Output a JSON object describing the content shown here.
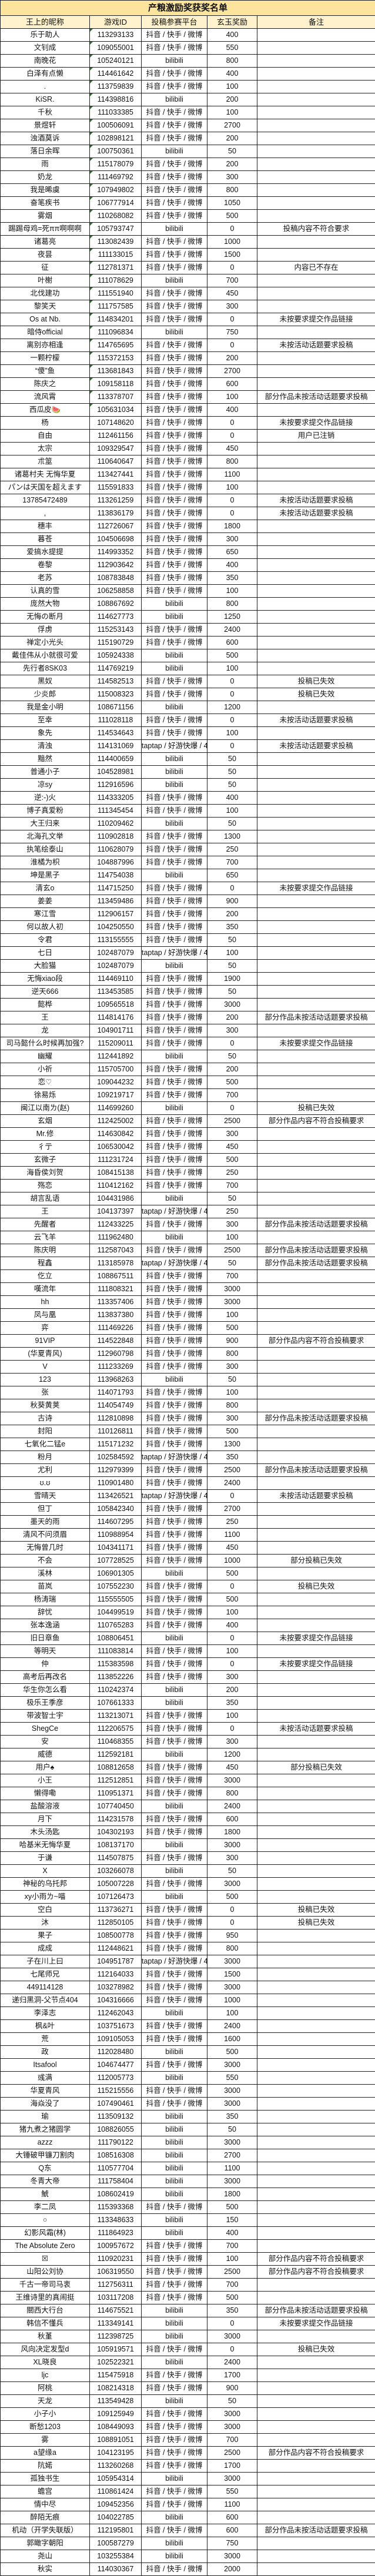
{
  "title": "产粮激励奖获奖名单",
  "colors": {
    "title_bg": "#fde49c",
    "header_bg": "#fff2cc",
    "text_number_marker": "#1f7a1f"
  },
  "headers": [
    "王上的昵称",
    "游戏ID",
    "投稿参赛平台",
    "玄玉奖励",
    "备注"
  ],
  "rows": [
    [
      "乐于助人",
      "113293133",
      "抖音 / 快手 / 微博",
      "400",
      ""
    ],
    [
      "文钊成",
      "109055001",
      "抖音 / 快手 / 微博",
      "550",
      ""
    ],
    [
      "南晚花",
      "105240121",
      "bilibili",
      "800",
      ""
    ],
    [
      "白泽有点懒",
      "114461642",
      "抖音 / 快手 / 微博",
      "400",
      ""
    ],
    [
      ".",
      "113759839",
      "抖音 / 快手 / 微博",
      "100",
      ""
    ],
    [
      "KiSR.",
      "114398816",
      "bilibili",
      "200",
      ""
    ],
    [
      "千秋",
      "111033385",
      "抖音 / 快手 / 微博",
      "100",
      ""
    ],
    [
      "景煜轩",
      "100506091",
      "抖音 / 快手 / 微博",
      "2700",
      ""
    ],
    [
      "浊酒莫诉",
      "102898121",
      "抖音 / 快手 / 微博",
      "200",
      ""
    ],
    [
      "落日余晖",
      "100750361",
      "bilibili",
      "50",
      ""
    ],
    [
      "雨",
      "115178079",
      "抖音 / 快手 / 微博",
      "200",
      ""
    ],
    [
      "奶龙",
      "111469792",
      "抖音 / 快手 / 微博",
      "300",
      ""
    ],
    [
      "我是晞虞",
      "107949802",
      "抖音 / 快手 / 微博",
      "800",
      ""
    ],
    [
      "奋笔疾书",
      "106777914",
      "抖音 / 快手 / 微博",
      "1050",
      ""
    ],
    [
      "雾烟",
      "110268082",
      "抖音 / 快手 / 微博",
      "500",
      ""
    ],
    [
      "踢踢母鸡=死ππ啊啊啊",
      "105793747",
      "bilibili",
      "0",
      "投稿内容不符合要求"
    ],
    [
      "诸葛亮",
      "113082439",
      "抖音 / 快手 / 微博",
      "1000",
      ""
    ],
    [
      "夜昙",
      "111133015",
      "抖音 / 快手 / 微博",
      "1500",
      ""
    ],
    [
      "征",
      "112781371",
      "抖音 / 快手 / 微博",
      "0",
      "内容已不存在"
    ],
    [
      "叶榭",
      "111078629",
      "bilibili",
      "700",
      ""
    ],
    [
      "北伐建功",
      "111551940",
      "抖音 / 快手 / 微博",
      "450",
      ""
    ],
    [
      "黎笑天",
      "111757585",
      "抖音 / 快手 / 微博",
      "300",
      ""
    ],
    [
      "Os at Nb.",
      "114834201",
      "抖音 / 快手 / 微博",
      "0",
      "未按要求提交作品链接"
    ],
    [
      "暗侍official",
      "111096834",
      "bilibili",
      "750",
      ""
    ],
    [
      "离别亦相逢",
      "114765695",
      "抖音 / 快手 / 微博",
      "0",
      "未按活动话题要求投稿"
    ],
    [
      "一颗柠檬",
      "115372153",
      "抖音 / 快手 / 微博",
      "200",
      ""
    ],
    [
      "“傻”鱼",
      "113681843",
      "抖音 / 快手 / 微博",
      "2700",
      ""
    ],
    [
      "陈庆之",
      "109158118",
      "抖音 / 快手 / 微博",
      "600",
      ""
    ],
    [
      "流风霄",
      "113378707",
      "抖音 / 快手 / 微博",
      "100",
      "部分作品未按活动话题要求投稿"
    ],
    [
      "西瓜皮🍉",
      "105631034",
      "抖音 / 快手 / 微博",
      "400",
      ""
    ],
    [
      "杨",
      "107148620",
      "抖音 / 快手 / 微博",
      "0",
      "未按要求提交作品链接"
    ],
    [
      "自由",
      "112461156",
      "抖音 / 快手 / 微博",
      "0",
      "用户已注销"
    ],
    [
      "太宗",
      "109329547",
      "抖音 / 快手 / 微博",
      "450",
      ""
    ],
    [
      "朮筮",
      "110640647",
      "抖音 / 快手 / 微博",
      "800",
      ""
    ],
    [
      "诸葛村夫 无悔华夏",
      "113427441",
      "抖音 / 快手 / 微博",
      "1100",
      ""
    ],
    [
      "パンは天国を超えます",
      "115591833",
      "抖音 / 快手 / 微博",
      "100",
      ""
    ],
    [
      "13785472489",
      "113261259",
      "抖音 / 快手 / 微博",
      "0",
      "未按活动话题要求投稿"
    ],
    [
      ",",
      "113836179",
      "抖音 / 快手 / 微博",
      "0",
      "未按活动话题要求投稿"
    ],
    [
      "穗丰",
      "112726067",
      "抖音 / 快手 / 微博",
      "1800",
      ""
    ],
    [
      "暮苍",
      "104506698",
      "抖音 / 快手 / 微博",
      "300",
      ""
    ],
    [
      "爱搞水提提",
      "114993352",
      "抖音 / 快手 / 微博",
      "650",
      ""
    ],
    [
      "卷黎",
      "112903642",
      "抖音 / 快手 / 微博",
      "400",
      ""
    ],
    [
      "老苏",
      "108783848",
      "抖音 / 快手 / 微博",
      "350",
      ""
    ],
    [
      "认真的雪",
      "106258858",
      "抖音 / 快手 / 微博",
      "100",
      ""
    ],
    [
      "庞然大物",
      "108867692",
      "bilibili",
      "800",
      ""
    ],
    [
      "无悔の断月",
      "114627773",
      "bilibili",
      "1250",
      ""
    ],
    [
      "俘虏",
      "115253143",
      "抖音 / 快手 / 微博",
      "2400",
      ""
    ],
    [
      "禅定小光头",
      "115190729",
      "抖音 / 快手 / 微博",
      "600",
      ""
    ],
    [
      "戴佳伟从小就很可爱",
      "105924338",
      "bilibili",
      "500",
      ""
    ],
    [
      "先行者8SK03",
      "114769219",
      "bilibili",
      "100",
      ""
    ],
    [
      "黑奴",
      "114582513",
      "抖音 / 快手 / 微博",
      "0",
      "投稿已失效"
    ],
    [
      "少炎郎",
      "115008323",
      "抖音 / 快手 / 微博",
      "0",
      "投稿已失效"
    ],
    [
      "我是金小明",
      "108671156",
      "bilibili",
      "1200",
      ""
    ],
    [
      "至幸",
      "111028118",
      "抖音 / 快手 / 微博",
      "0",
      "未按活动话题要求投稿"
    ],
    [
      "象先",
      "114534643",
      "抖音 / 快手 / 微博",
      "100",
      ""
    ],
    [
      "清浊",
      "114131069",
      "taptap / 好游快爆 / 4399",
      "0",
      "未按活动话题要求投稿"
    ],
    [
      "黯然",
      "114400659",
      "bilibili",
      "50",
      ""
    ],
    [
      "普通小子",
      "104528981",
      "bilibili",
      "50",
      ""
    ],
    [
      "凉sy",
      "112916596",
      "bilibili",
      "50",
      ""
    ],
    [
      "逆:-)火",
      "114333205",
      "抖音 / 快手 / 微博",
      "400",
      ""
    ],
    [
      "博子真爱粉",
      "111345454",
      "抖音 / 快手 / 微博",
      "100",
      ""
    ],
    [
      "大王归来",
      "110209462",
      "bilibili",
      "50",
      ""
    ],
    [
      "北海孔文举",
      "110902818",
      "抖音 / 快手 / 微博",
      "1300",
      ""
    ],
    [
      "执笔绘泰山",
      "110628079",
      "抖音 / 快手 / 微博",
      "250",
      ""
    ],
    [
      "淮橘为枳",
      "104887996",
      "抖音 / 快手 / 微博",
      "700",
      ""
    ],
    [
      "坤是黑子",
      "114754038",
      "bilibili",
      "650",
      ""
    ],
    [
      "清玄o",
      "114715250",
      "抖音 / 快手 / 微博",
      "0",
      "未按要求提交作品链接"
    ],
    [
      "姜姜",
      "113459486",
      "抖音 / 快手 / 微博",
      "900",
      ""
    ],
    [
      "寒江雪",
      "112906157",
      "抖音 / 快手 / 微博",
      "200",
      ""
    ],
    [
      "何以故人初",
      "104250550",
      "抖音 / 快手 / 微博",
      "350",
      ""
    ],
    [
      "令君",
      "113155555",
      "抖音 / 快手 / 微博",
      "50",
      ""
    ],
    [
      "七日",
      "102487079",
      "taptap / 好游快爆 / 4399",
      "100",
      ""
    ],
    [
      "大脸猫",
      "102487079",
      "bilibili",
      "50",
      ""
    ],
    [
      "无悔xiao段",
      "114469110",
      "抖音 / 快手 / 微博",
      "1900",
      ""
    ],
    [
      "逆天666",
      "113453585",
      "抖音 / 快手 / 微博",
      "50",
      ""
    ],
    [
      "懿桦",
      "109565518",
      "抖音 / 快手 / 微博",
      "3000",
      ""
    ],
    [
      "王",
      "114814176",
      "抖音 / 快手 / 微博",
      "200",
      "部分作品未按活动话题要求投稿"
    ],
    [
      "龙",
      "104901711",
      "抖音 / 快手 / 微博",
      "300",
      ""
    ],
    [
      "司马懿什么时候再加强?",
      "115209011",
      "抖音 / 快手 / 微博",
      "0",
      "未按要求提交作品链接"
    ],
    [
      "幽耀",
      "112441892",
      "bilibili",
      "50",
      ""
    ],
    [
      "小祈",
      "115705700",
      "抖音 / 快手 / 微博",
      "200",
      ""
    ],
    [
      "恋♡",
      "109044232",
      "抖音 / 快手 / 微博",
      "500",
      ""
    ],
    [
      "徐易烁",
      "109219717",
      "抖音 / 快手 / 微博",
      "700",
      ""
    ],
    [
      "闽江以南ㄌ(赵)",
      "114699260",
      "bilibili",
      "0",
      "投稿已失效"
    ],
    [
      "玄烟",
      "112425002",
      "抖音 / 快手 / 微博",
      "2500",
      "部分作品内容不符合投稿要求"
    ],
    [
      "Mr.修",
      "114630842",
      "抖音 / 快手 / 微博",
      "300",
      ""
    ],
    [
      "彳亍",
      "106530042",
      "抖音 / 快手 / 微博",
      "450",
      ""
    ],
    [
      "玄微子",
      "111231724",
      "抖音 / 快手 / 微博",
      "500",
      ""
    ],
    [
      "海昏侯刘贺",
      "108415138",
      "抖音 / 快手 / 微博",
      "250",
      ""
    ],
    [
      "殇恋",
      "110412162",
      "抖音 / 快手 / 微博",
      "700",
      ""
    ],
    [
      "胡言乱语",
      "104431986",
      "bilibili",
      "50",
      ""
    ],
    [
      "王",
      "104137397",
      "taptap / 好游快爆 / 4399",
      "250",
      ""
    ],
    [
      "先醒者",
      "112433225",
      "抖音 / 快手 / 微博",
      "300",
      "部分作品未按活动话题要求投稿"
    ],
    [
      "云飞羊",
      "111962480",
      "bilibili",
      "100",
      ""
    ],
    [
      "陈庆明",
      "112587043",
      "抖音 / 快手 / 微博",
      "2500",
      "部分作品未按活动话题要求投稿"
    ],
    [
      "程鑫",
      "113185978",
      "taptap / 好游快爆 / 4399",
      "50",
      "部分作品未按活动话题要求投稿"
    ],
    [
      "仡立",
      "108867511",
      "抖音 / 快手 / 微博",
      "700",
      ""
    ],
    [
      "嘆流年",
      "111808321",
      "抖音 / 快手 / 微博",
      "3000",
      ""
    ],
    [
      "hh",
      "113357406",
      "抖音 / 快手 / 微博",
      "3000",
      ""
    ],
    [
      "凤与凰",
      "113837380",
      "抖音 / 快手 / 微博",
      "100",
      ""
    ],
    [
      "弈",
      "111469226",
      "抖音 / 快手 / 微博",
      "500",
      ""
    ],
    [
      "91VIP",
      "114522848",
      "抖音 / 快手 / 微博",
      "900",
      "部分作品内容不符合投稿要求"
    ],
    [
      "(华夏青风)",
      "112960798",
      "抖音 / 快手 / 微博",
      "800",
      ""
    ],
    [
      "V",
      "111233269",
      "抖音 / 快手 / 微博",
      "300",
      ""
    ],
    [
      "123",
      "113968263",
      "bilibili",
      "50",
      ""
    ],
    [
      "张",
      "114071793",
      "抖音 / 快手 / 微博",
      "100",
      ""
    ],
    [
      "秋葵黄荚",
      "114054749",
      "抖音 / 快手 / 微博",
      "800",
      ""
    ],
    [
      "古诗",
      "112810898",
      "抖音 / 快手 / 微博",
      "300",
      "部分作品未按活动话题要求投稿"
    ],
    [
      "封阳",
      "110126811",
      "抖音 / 快手 / 微博",
      "500",
      ""
    ],
    [
      "七氧化二锰e",
      "115171232",
      "抖音 / 快手 / 微博",
      "1300",
      ""
    ],
    [
      "粉月",
      "102584592",
      "taptap / 好游快爆 / 4399",
      "350",
      ""
    ],
    [
      "尤利",
      "112979399",
      "抖音 / 快手 / 微博",
      "2500",
      "部分作品未按活动话题要求投稿"
    ],
    [
      "ʊ.ʊ",
      "110901480",
      "抖音 / 快手 / 微博",
      "2400",
      ""
    ],
    [
      "雪晴天",
      "113426521",
      "taptap / 好游快爆 / 4399",
      "0",
      "未按活动话题要求投稿"
    ],
    [
      "但丁",
      "105842340",
      "抖音 / 快手 / 微博",
      "2700",
      ""
    ],
    [
      "墨天的雨",
      "114607295",
      "抖音 / 快手 / 微博",
      "250",
      ""
    ],
    [
      "清风不问须眉",
      "110988954",
      "抖音 / 快手 / 微博",
      "1100",
      ""
    ],
    [
      "无悔曾几时",
      "104341171",
      "抖音 / 快手 / 微博",
      "450",
      ""
    ],
    [
      "不会",
      "107728525",
      "抖音 / 快手 / 微博",
      "1000",
      "部分投稿已失效"
    ],
    [
      "溪林",
      "106901305",
      "bilibili",
      "500",
      ""
    ],
    [
      "苗岚",
      "107552230",
      "抖音 / 快手 / 微博",
      "0",
      "投稿已失效"
    ],
    [
      "杨涛瑞",
      "115555505",
      "抖音 / 快手 / 微博",
      "500",
      ""
    ],
    [
      "辞忧",
      "104499519",
      "抖音 / 快手 / 微博",
      "100",
      ""
    ],
    [
      "张本逸涵",
      "110765283",
      "抖音 / 快手 / 微博",
      "400",
      ""
    ],
    [
      "旧日章鱼",
      "108806451",
      "bilibili",
      "0",
      "未按要求提交作品链接"
    ],
    [
      "等明天",
      "111083814",
      "抖音 / 快手 / 微博",
      "100",
      ""
    ],
    [
      "仲",
      "115383598",
      "抖音 / 快手 / 微博",
      "0",
      "未按要求提交作品链接"
    ],
    [
      "高考后再改名",
      "113852226",
      "抖音 / 快手 / 微博",
      "300",
      ""
    ],
    [
      "华生你怎么看",
      "110242374",
      "bilibili",
      "200",
      ""
    ],
    [
      "极乐王季彦",
      "107661333",
      "bilibili",
      "350",
      ""
    ],
    [
      "带波智士宇",
      "113213071",
      "抖音 / 快手 / 微博",
      "100",
      ""
    ],
    [
      "ShegCe",
      "112206575",
      "抖音 / 快手 / 微博",
      "0",
      "未按活动话题要求投稿"
    ],
    [
      "安",
      "110468355",
      "抖音 / 快手 / 微博",
      "300",
      ""
    ],
    [
      "威德",
      "112592181",
      "bilibili",
      "1200",
      ""
    ],
    [
      "用户♠",
      "108812658",
      "抖音 / 快手 / 微博",
      "450",
      "部分投稿已失效"
    ],
    [
      "小王",
      "112512851",
      "抖音 / 快手 / 微博",
      "3000",
      ""
    ],
    [
      "懒得嘞",
      "110951371",
      "抖音 / 快手 / 微博",
      "800",
      ""
    ],
    [
      "盐酸溶液",
      "107740450",
      "bilibili",
      "2400",
      ""
    ],
    [
      "月下",
      "114231578",
      "抖音 / 快手 / 微博",
      "600",
      ""
    ],
    [
      "木头汤匙",
      "104302193",
      "抖音 / 快手 / 微博",
      "1800",
      ""
    ],
    [
      "哈基米无悔华夏",
      "108137170",
      "bilibili",
      "3000",
      ""
    ],
    [
      "于谦",
      "114507875",
      "抖音 / 快手 / 微博",
      "300",
      ""
    ],
    [
      "X",
      "103266078",
      "bilibili",
      "50",
      ""
    ],
    [
      "神秘的乌托邦",
      "105007228",
      "抖音 / 快手 / 微博",
      "3000",
      ""
    ],
    [
      "xy小雨ㄌ~喵",
      "107126473",
      "bilibili",
      "500",
      ""
    ],
    [
      "空白",
      "113736271",
      "抖音 / 快手 / 微博",
      "0",
      "投稿已失效"
    ],
    [
      "沐",
      "112850105",
      "抖音 / 快手 / 微博",
      "0",
      "投稿已失效"
    ],
    [
      "果子",
      "108500778",
      "抖音 / 快手 / 微博",
      "950",
      ""
    ],
    [
      "成成",
      "112448621",
      "抖音 / 快手 / 微博",
      "800",
      ""
    ],
    [
      "子在川上曰",
      "104951787",
      "taptap / 好游快爆 / 4399",
      "3000",
      ""
    ],
    [
      "七尾师兄",
      "112164033",
      "抖音 / 快手 / 微博",
      "1500",
      ""
    ],
    [
      "449114128",
      "103278982",
      "抖音 / 快手 / 微博",
      "3000",
      ""
    ],
    [
      "递归黑洞-父节点404",
      "104316666",
      "抖音 / 快手 / 微博",
      "1000",
      ""
    ],
    [
      "李泽志",
      "112462043",
      "bilibili",
      "100",
      ""
    ],
    [
      "枫&叶",
      "103751673",
      "抖音 / 快手 / 微博",
      "2400",
      ""
    ],
    [
      "荒",
      "109105053",
      "抖音 / 快手 / 微博",
      "1600",
      ""
    ],
    [
      "政",
      "112028480",
      "bilibili",
      "500",
      ""
    ],
    [
      "Itsafool",
      "104674477",
      "抖音 / 快手 / 微博",
      "3000",
      ""
    ],
    [
      "彧满",
      "112005773",
      "bilibili",
      "550",
      ""
    ],
    [
      "华夏青风",
      "115215556",
      "抖音 / 快手 / 微博",
      "3000",
      ""
    ],
    [
      "海焱没了",
      "107490461",
      "抖音 / 快手 / 微博",
      "3000",
      ""
    ],
    [
      "瑜",
      "113509132",
      "bilibili",
      "350",
      ""
    ],
    [
      "猪九煮之猪圆学",
      "108826055",
      "bilibili",
      "50",
      ""
    ],
    [
      "azzz",
      "111790122",
      "bilibili",
      "3000",
      ""
    ],
    [
      "大锤破甲镰刀割肉",
      "108516308",
      "bilibili",
      "2700",
      ""
    ],
    [
      "Q东",
      "110577704",
      "bilibili",
      "1100",
      ""
    ],
    [
      "冬青大帝",
      "111758404",
      "bilibili",
      "3000",
      ""
    ],
    [
      "鯱",
      "108602419",
      "bilibili",
      "1800",
      ""
    ],
    [
      "李二凤",
      "115393368",
      "抖音 / 快手 / 微博",
      "500",
      ""
    ],
    [
      "○",
      "113348633",
      "bilibili",
      "150",
      ""
    ],
    [
      "幻影风霜(林)",
      "111864923",
      "bilibili",
      "400",
      ""
    ],
    [
      "The Absolute Zero",
      "100957672",
      "抖音 / 快手 / 微博",
      "700",
      ""
    ],
    [
      "☒",
      "110920231",
      "抖音 / 快手 / 微博",
      "100",
      "部分作品内容不符合投稿要求"
    ],
    [
      "山阳公刘协",
      "106319550",
      "抖音 / 快手 / 微博",
      "2500",
      "部分作品内容不符合投稿要求"
    ],
    [
      "千古一帝司马衷",
      "112756311",
      "抖音 / 快手 / 微博",
      "700",
      ""
    ],
    [
      "王维诗里的真闹挺",
      "103117208",
      "抖音 / 快手 / 微博",
      "500",
      ""
    ],
    [
      "關西大行台",
      "114675521",
      "bilibili",
      "350",
      "部分作品未按活动话题要求投稿"
    ],
    [
      "韩信不懂兵",
      "113349141",
      "bilibili",
      "0",
      "未按要求提交作品链接"
    ],
    [
      "秋堇",
      "112398725",
      "bilibili",
      "3000",
      ""
    ],
    [
      "风向决定发型d",
      "105919571",
      "抖音 / 快手 / 微博",
      "0",
      "投稿已失效"
    ],
    [
      "XL晓良",
      "102522321",
      "bilibili",
      "2400",
      ""
    ],
    [
      "ljc",
      "115475918",
      "抖音 / 快手 / 微博",
      "1700",
      ""
    ],
    [
      "阿桃",
      "108214318",
      "抖音 / 快手 / 微博",
      "900",
      ""
    ],
    [
      "天龙",
      "113549428",
      "bilibili",
      "50",
      ""
    ],
    [
      "小子小",
      "109125949",
      "抖音 / 快手 / 微博",
      "3000",
      ""
    ],
    [
      "断愁1203",
      "108449093",
      "抖音 / 快手 / 微博",
      "3000",
      ""
    ],
    [
      "雾",
      "108891051",
      "抖音 / 快手 / 微博",
      "700",
      ""
    ],
    [
      "a望缘a",
      "104123195",
      "抖音 / 快手 / 微博",
      "2500",
      "部分作品内容不符合投稿要求"
    ],
    [
      "阬婼",
      "113260268",
      "抖音 / 快手 / 微博",
      "1700",
      ""
    ],
    [
      "孤独书生",
      "105954314",
      "bilibili",
      "3000",
      ""
    ],
    [
      "蟾宫",
      "110861424",
      "抖音 / 快手 / 微博",
      "550",
      ""
    ],
    [
      "情中尽",
      "109452356",
      "抖音 / 快手 / 微博",
      "1100",
      ""
    ],
    [
      "醉陌无痕",
      "104022785",
      "bilibili",
      "600",
      ""
    ],
    [
      "机动（开学失联版）",
      "112195801",
      "抖音 / 快手 / 微博",
      "600",
      "部分作品未按活动话题要求投稿"
    ],
    [
      "郭瞰字朝阳",
      "100587279",
      "bilibili",
      "750",
      ""
    ],
    [
      "尧山",
      "103255384",
      "bilibili",
      "3000",
      ""
    ],
    [
      "秋实",
      "114030367",
      "抖音 / 快手 / 微博",
      "2000",
      ""
    ]
  ]
}
